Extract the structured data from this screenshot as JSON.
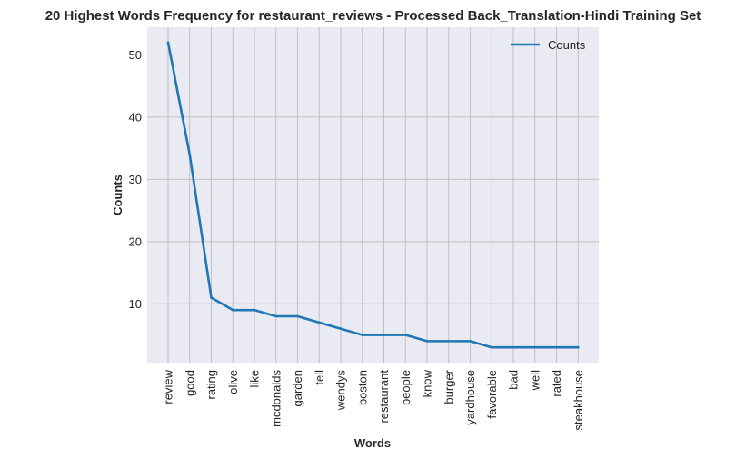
{
  "chart_data": {
    "type": "line",
    "title": "20 Highest Words Frequency for restaurant_reviews - Processed Back_Translation-Hindi Training Set",
    "xlabel": "Words",
    "ylabel": "Counts",
    "categories": [
      "review",
      "good",
      "rating",
      "olive",
      "like",
      "mcdonalds",
      "garden",
      "tell",
      "wendys",
      "boston",
      "restaurant",
      "people",
      "know",
      "burger",
      "yardhouse",
      "favorable",
      "bad",
      "well",
      "rated",
      "steakhouse"
    ],
    "series": [
      {
        "name": "Counts",
        "values": [
          52,
          34,
          11,
          9,
          9,
          8,
          8,
          7,
          6,
          5,
          5,
          5,
          4,
          4,
          4,
          3,
          3,
          3,
          3,
          3
        ],
        "color": "#1f77b4"
      }
    ],
    "yticks": [
      10,
      20,
      30,
      40,
      50
    ],
    "ylim": [
      0.55,
      54.45
    ],
    "grid": true,
    "legend": "top-right",
    "colors": {
      "background": "#eaeaf2",
      "grid": "#c0c0c0",
      "line": "#1f77b4"
    }
  }
}
